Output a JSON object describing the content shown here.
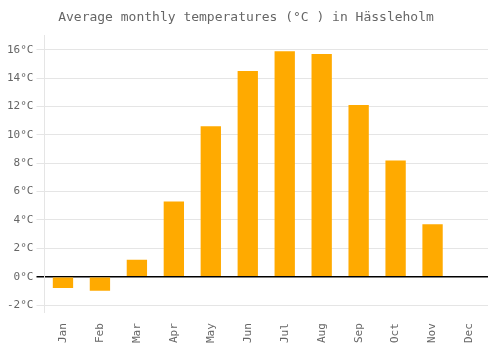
{
  "chart_data": {
    "type": "bar",
    "title": "Average monthly temperatures (°C ) in Hässleholm",
    "categories": [
      "Jan",
      "Feb",
      "Mar",
      "Apr",
      "May",
      "Jun",
      "Jul",
      "Aug",
      "Sep",
      "Oct",
      "Nov",
      "Dec"
    ],
    "values": [
      -0.8,
      -1.0,
      1.2,
      5.3,
      10.6,
      14.5,
      15.9,
      15.7,
      12.1,
      8.2,
      3.7,
      0.0
    ],
    "color": "#FFAA00",
    "ylim": [
      -2.5,
      17.0
    ],
    "yticks": [
      {
        "value": -2,
        "label": "-2°C"
      },
      {
        "value": 0,
        "label": "0°C"
      },
      {
        "value": 2,
        "label": "2°C"
      },
      {
        "value": 4,
        "label": "4°C"
      },
      {
        "value": 6,
        "label": "6°C"
      },
      {
        "value": 8,
        "label": "8°C"
      },
      {
        "value": 10,
        "label": "10°C"
      },
      {
        "value": 12,
        "label": "12°C"
      },
      {
        "value": 14,
        "label": "14°C"
      },
      {
        "value": 16,
        "label": "16°C"
      }
    ],
    "grid": true
  }
}
